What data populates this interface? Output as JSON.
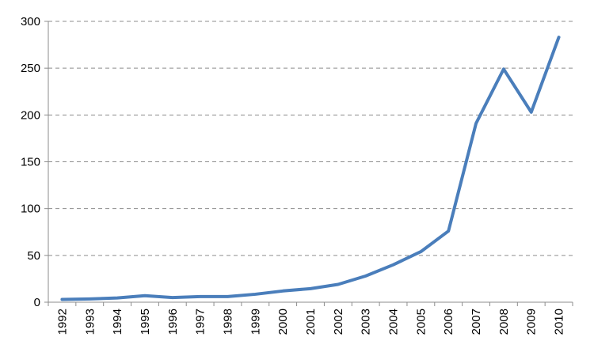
{
  "chart_data": {
    "type": "line",
    "title": "",
    "xlabel": "",
    "ylabel": "",
    "x": [
      "1992",
      "1993",
      "1994",
      "1995",
      "1996",
      "1997",
      "1998",
      "1999",
      "2000",
      "2001",
      "2002",
      "2003",
      "2004",
      "2005",
      "2006",
      "2007",
      "2008",
      "2009",
      "2010"
    ],
    "series": [
      {
        "values": [
          3,
          3.5,
          4.5,
          7,
          5,
          6,
          6,
          8.5,
          12,
          14.5,
          19,
          28,
          40,
          54,
          76,
          191,
          249,
          203,
          283
        ],
        "color": "#4a7ebb"
      }
    ],
    "ylim": [
      0,
      300
    ],
    "yticks": [
      0,
      50,
      100,
      150,
      200,
      250,
      300
    ],
    "ytick_labels": [
      "0",
      "50",
      "100",
      "150",
      "200",
      "250",
      "300"
    ],
    "grid": "horizontal-dashed",
    "legend": "none",
    "axis_color": "#8c8c8c"
  }
}
